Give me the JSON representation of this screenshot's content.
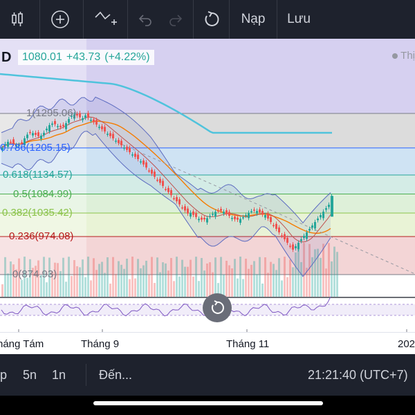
{
  "toolbar": {
    "icons": [
      "candlestick-icon",
      "add-indicator-icon",
      "compare-icon",
      "undo-icon",
      "redo-icon",
      "refresh-icon"
    ],
    "deposit_label": "Nạp",
    "save_label": "Lưu"
  },
  "header": {
    "ticker_letter": "D",
    "price": "1080.01",
    "change": "+43.73",
    "change_pct": "(+4.22%)",
    "legend_text": "Thị"
  },
  "fib_levels": [
    {
      "label": "1(1295.06)",
      "value": 1295.06,
      "color": "#787b86"
    },
    {
      "label": "0.786(1205.15)",
      "value": 1205.15,
      "color": "#2962ff"
    },
    {
      "label": "0.618(1134.57)",
      "value": 1134.57,
      "color": "#26a69a"
    },
    {
      "label": "0.5(1084.99)",
      "value": 1084.99,
      "color": "#4caf50"
    },
    {
      "label": "0.382(1035.42)",
      "value": 1035.42,
      "color": "#8bc34a"
    },
    {
      "label": "0.236(974.08)",
      "value": 974.08,
      "color": "#b71c1c"
    },
    {
      "label": "0(874.93)",
      "value": 874.93,
      "color": "#787b86"
    }
  ],
  "xaxis": {
    "labels": [
      "háng Tám",
      "Tháng 9",
      "Tháng 11",
      "202"
    ]
  },
  "bottombar": {
    "interval_p": "p",
    "interval_5n": "5n",
    "interval_1n": "1n",
    "goto_label": "Đến...",
    "clock": "21:21:40 (UTC+7)"
  },
  "colors": {
    "up": "#26a69a",
    "down": "#ef5350",
    "ma_long": "#4fc3dc",
    "ma_orange": "#f57c00",
    "bb": "#5c6bc0"
  }
}
